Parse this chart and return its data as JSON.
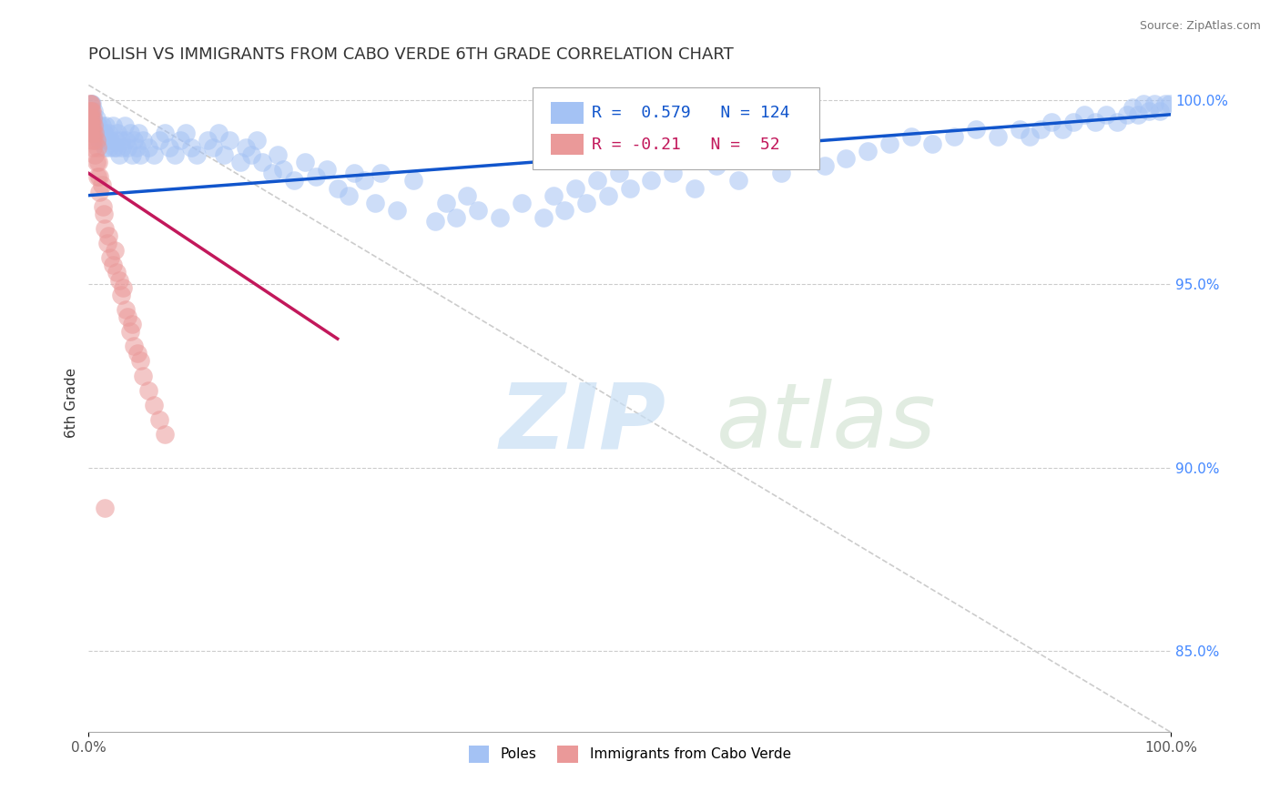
{
  "title": "POLISH VS IMMIGRANTS FROM CABO VERDE 6TH GRADE CORRELATION CHART",
  "source": "Source: ZipAtlas.com",
  "xlabel": "",
  "ylabel": "6th Grade",
  "xlim": [
    0.0,
    1.0
  ],
  "ylim": [
    0.828,
    1.007
  ],
  "right_yticks": [
    0.85,
    0.9,
    0.95,
    1.0
  ],
  "right_yticklabels": [
    "85.0%",
    "90.0%",
    "95.0%",
    "100.0%"
  ],
  "xtick_labels": [
    "0.0%",
    "100.0%"
  ],
  "blue_R": 0.579,
  "blue_N": 124,
  "pink_R": -0.21,
  "pink_N": 52,
  "blue_color": "#a4c2f4",
  "pink_color": "#ea9999",
  "blue_line_color": "#1155cc",
  "pink_line_color": "#c2185b",
  "legend_labels": [
    "Poles",
    "Immigrants from Cabo Verde"
  ],
  "blue_trend": [
    0.0,
    1.0,
    0.974,
    0.996
  ],
  "pink_trend": [
    0.0,
    0.23,
    0.98,
    0.935
  ],
  "diag_line": [
    0.0,
    1.0,
    1.004,
    0.828
  ],
  "blue_points": [
    [
      0.002,
      0.999
    ],
    [
      0.003,
      0.999
    ],
    [
      0.004,
      0.995
    ],
    [
      0.005,
      0.997
    ],
    [
      0.006,
      0.993
    ],
    [
      0.007,
      0.995
    ],
    [
      0.008,
      0.991
    ],
    [
      0.009,
      0.993
    ],
    [
      0.01,
      0.989
    ],
    [
      0.011,
      0.991
    ],
    [
      0.012,
      0.993
    ],
    [
      0.013,
      0.989
    ],
    [
      0.014,
      0.991
    ],
    [
      0.015,
      0.987
    ],
    [
      0.016,
      0.993
    ],
    [
      0.017,
      0.989
    ],
    [
      0.018,
      0.991
    ],
    [
      0.019,
      0.987
    ],
    [
      0.02,
      0.989
    ],
    [
      0.022,
      0.993
    ],
    [
      0.023,
      0.987
    ],
    [
      0.025,
      0.989
    ],
    [
      0.026,
      0.987
    ],
    [
      0.027,
      0.991
    ],
    [
      0.028,
      0.985
    ],
    [
      0.03,
      0.989
    ],
    [
      0.031,
      0.987
    ],
    [
      0.033,
      0.993
    ],
    [
      0.034,
      0.989
    ],
    [
      0.036,
      0.987
    ],
    [
      0.038,
      0.991
    ],
    [
      0.04,
      0.985
    ],
    [
      0.042,
      0.989
    ],
    [
      0.044,
      0.987
    ],
    [
      0.046,
      0.991
    ],
    [
      0.048,
      0.985
    ],
    [
      0.05,
      0.989
    ],
    [
      0.055,
      0.987
    ],
    [
      0.06,
      0.985
    ],
    [
      0.065,
      0.989
    ],
    [
      0.07,
      0.991
    ],
    [
      0.075,
      0.987
    ],
    [
      0.08,
      0.985
    ],
    [
      0.085,
      0.989
    ],
    [
      0.09,
      0.991
    ],
    [
      0.095,
      0.987
    ],
    [
      0.1,
      0.985
    ],
    [
      0.11,
      0.989
    ],
    [
      0.115,
      0.987
    ],
    [
      0.12,
      0.991
    ],
    [
      0.125,
      0.985
    ],
    [
      0.13,
      0.989
    ],
    [
      0.14,
      0.983
    ],
    [
      0.145,
      0.987
    ],
    [
      0.15,
      0.985
    ],
    [
      0.155,
      0.989
    ],
    [
      0.16,
      0.983
    ],
    [
      0.17,
      0.98
    ],
    [
      0.175,
      0.985
    ],
    [
      0.18,
      0.981
    ],
    [
      0.19,
      0.978
    ],
    [
      0.2,
      0.983
    ],
    [
      0.21,
      0.979
    ],
    [
      0.22,
      0.981
    ],
    [
      0.23,
      0.976
    ],
    [
      0.24,
      0.974
    ],
    [
      0.245,
      0.98
    ],
    [
      0.255,
      0.978
    ],
    [
      0.265,
      0.972
    ],
    [
      0.27,
      0.98
    ],
    [
      0.285,
      0.97
    ],
    [
      0.3,
      0.978
    ],
    [
      0.32,
      0.967
    ],
    [
      0.33,
      0.972
    ],
    [
      0.34,
      0.968
    ],
    [
      0.35,
      0.974
    ],
    [
      0.36,
      0.97
    ],
    [
      0.38,
      0.968
    ],
    [
      0.4,
      0.972
    ],
    [
      0.42,
      0.968
    ],
    [
      0.43,
      0.974
    ],
    [
      0.44,
      0.97
    ],
    [
      0.45,
      0.976
    ],
    [
      0.46,
      0.972
    ],
    [
      0.47,
      0.978
    ],
    [
      0.48,
      0.974
    ],
    [
      0.49,
      0.98
    ],
    [
      0.5,
      0.976
    ],
    [
      0.52,
      0.978
    ],
    [
      0.54,
      0.98
    ],
    [
      0.56,
      0.976
    ],
    [
      0.58,
      0.982
    ],
    [
      0.6,
      0.978
    ],
    [
      0.62,
      0.984
    ],
    [
      0.64,
      0.98
    ],
    [
      0.66,
      0.986
    ],
    [
      0.68,
      0.982
    ],
    [
      0.7,
      0.984
    ],
    [
      0.72,
      0.986
    ],
    [
      0.74,
      0.988
    ],
    [
      0.76,
      0.99
    ],
    [
      0.78,
      0.988
    ],
    [
      0.8,
      0.99
    ],
    [
      0.82,
      0.992
    ],
    [
      0.84,
      0.99
    ],
    [
      0.86,
      0.992
    ],
    [
      0.87,
      0.99
    ],
    [
      0.88,
      0.992
    ],
    [
      0.89,
      0.994
    ],
    [
      0.9,
      0.992
    ],
    [
      0.91,
      0.994
    ],
    [
      0.92,
      0.996
    ],
    [
      0.93,
      0.994
    ],
    [
      0.94,
      0.996
    ],
    [
      0.95,
      0.994
    ],
    [
      0.96,
      0.996
    ],
    [
      0.965,
      0.998
    ],
    [
      0.97,
      0.996
    ],
    [
      0.975,
      0.999
    ],
    [
      0.98,
      0.997
    ],
    [
      0.985,
      0.999
    ],
    [
      0.99,
      0.997
    ],
    [
      0.995,
      0.999
    ],
    [
      0.999,
      0.999
    ]
  ],
  "pink_points": [
    [
      0.001,
      0.999
    ],
    [
      0.001,
      0.997
    ],
    [
      0.001,
      0.995
    ],
    [
      0.001,
      0.993
    ],
    [
      0.002,
      0.999
    ],
    [
      0.002,
      0.997
    ],
    [
      0.002,
      0.995
    ],
    [
      0.002,
      0.993
    ],
    [
      0.002,
      0.991
    ],
    [
      0.003,
      0.997
    ],
    [
      0.003,
      0.993
    ],
    [
      0.003,
      0.989
    ],
    [
      0.004,
      0.995
    ],
    [
      0.004,
      0.991
    ],
    [
      0.004,
      0.987
    ],
    [
      0.005,
      0.993
    ],
    [
      0.005,
      0.989
    ],
    [
      0.006,
      0.991
    ],
    [
      0.006,
      0.985
    ],
    [
      0.007,
      0.989
    ],
    [
      0.007,
      0.983
    ],
    [
      0.008,
      0.987
    ],
    [
      0.008,
      0.979
    ],
    [
      0.009,
      0.983
    ],
    [
      0.01,
      0.979
    ],
    [
      0.01,
      0.975
    ],
    [
      0.012,
      0.977
    ],
    [
      0.013,
      0.971
    ],
    [
      0.014,
      0.969
    ],
    [
      0.015,
      0.965
    ],
    [
      0.017,
      0.961
    ],
    [
      0.018,
      0.963
    ],
    [
      0.02,
      0.957
    ],
    [
      0.022,
      0.955
    ],
    [
      0.024,
      0.959
    ],
    [
      0.026,
      0.953
    ],
    [
      0.028,
      0.951
    ],
    [
      0.03,
      0.947
    ],
    [
      0.032,
      0.949
    ],
    [
      0.034,
      0.943
    ],
    [
      0.036,
      0.941
    ],
    [
      0.038,
      0.937
    ],
    [
      0.04,
      0.939
    ],
    [
      0.042,
      0.933
    ],
    [
      0.045,
      0.931
    ],
    [
      0.048,
      0.929
    ],
    [
      0.05,
      0.925
    ],
    [
      0.055,
      0.921
    ],
    [
      0.06,
      0.917
    ],
    [
      0.065,
      0.913
    ],
    [
      0.07,
      0.909
    ],
    [
      0.015,
      0.889
    ]
  ]
}
